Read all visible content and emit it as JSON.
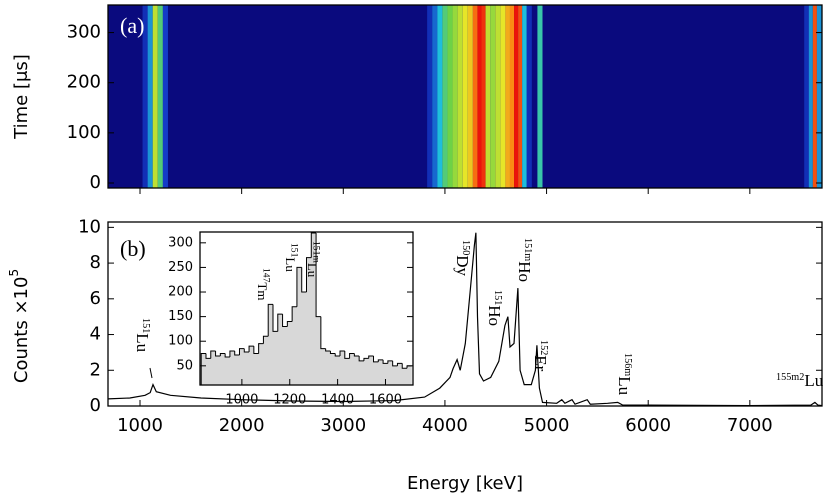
{
  "chart_data": [
    {
      "type": "heatmap",
      "label": "(a)",
      "ylabel": "Time [μs]",
      "xlim": [
        685,
        7710
      ],
      "xticks": [
        1000,
        2000,
        3000,
        4000,
        5000,
        6000,
        7000
      ],
      "ylim": [
        -10,
        355
      ],
      "yticks": [
        0,
        100,
        200,
        300
      ],
      "x": [
        1050,
        1100,
        1150,
        1200,
        1250,
        3850,
        3900,
        3950,
        4000,
        4050,
        4100,
        4150,
        4200,
        4250,
        4300,
        4340,
        4380,
        4420,
        4470,
        4520,
        4570,
        4620,
        4660,
        4700,
        4740,
        4780,
        4830,
        4935,
        7560,
        7600,
        7640,
        7680
      ],
      "values": [
        0.15,
        0.3,
        0.6,
        0.45,
        0.2,
        0.15,
        0.25,
        0.35,
        0.45,
        0.5,
        0.55,
        0.6,
        0.65,
        0.7,
        0.85,
        1.0,
        0.95,
        0.6,
        0.55,
        0.6,
        0.65,
        0.75,
        0.8,
        1.0,
        0.9,
        0.35,
        0.15,
        0.4,
        0.15,
        0.3,
        0.9,
        0.3
      ]
    },
    {
      "type": "line",
      "label": "(b)",
      "xlabel": "Energy [keV]",
      "ylabel": "Counts ×10",
      "ylabel_superscript": "5",
      "color": "#000000",
      "xlim": [
        685,
        7710
      ],
      "xticks": [
        1000,
        2000,
        3000,
        4000,
        5000,
        6000,
        7000
      ],
      "ylim": [
        0,
        10.3
      ],
      "yticks": [
        0,
        2,
        4,
        6,
        8,
        10
      ],
      "x": [
        685,
        900,
        1050,
        1100,
        1128,
        1160,
        1300,
        1600,
        2000,
        2500,
        3000,
        3500,
        3800,
        3950,
        4050,
        4080,
        4120,
        4150,
        4200,
        4250,
        4290,
        4305,
        4320,
        4340,
        4380,
        4450,
        4530,
        4590,
        4620,
        4640,
        4680,
        4718,
        4740,
        4780,
        4850,
        4890,
        4905,
        4930,
        4960,
        5100,
        5150,
        5180,
        5250,
        5280,
        5400,
        5430,
        5600,
        5700,
        5750,
        6000,
        7000,
        7600,
        7640,
        7670,
        7710
      ],
      "values": [
        0.4,
        0.45,
        0.6,
        0.75,
        1.2,
        0.8,
        0.6,
        0.45,
        0.35,
        0.28,
        0.25,
        0.3,
        0.5,
        1.0,
        1.6,
        2.1,
        2.6,
        2.0,
        3.5,
        6.5,
        9.0,
        9.7,
        5.0,
        1.8,
        1.4,
        1.6,
        2.5,
        4.5,
        5.0,
        3.3,
        3.5,
        6.6,
        2.0,
        1.2,
        1.2,
        2.0,
        3.4,
        1.0,
        0.2,
        0.15,
        0.35,
        0.15,
        0.35,
        0.1,
        0.35,
        0.1,
        0.15,
        0.2,
        0.05,
        0.05,
        0.02,
        0.05,
        0.2,
        0.05,
        0.02
      ],
      "annotations": [
        {
          "mass": "151",
          "symbol": "Lu"
        },
        {
          "mass": "150",
          "symbol": "Dy"
        },
        {
          "mass": "151",
          "symbol": "Ho"
        },
        {
          "mass": "151m",
          "symbol": "Ho"
        },
        {
          "mass": "152",
          "symbol": "Er"
        },
        {
          "mass": "156m",
          "symbol": "Lu"
        },
        {
          "mass": "155m2",
          "symbol": "Lu"
        }
      ]
    },
    {
      "type": "histogram",
      "color": "#000000",
      "fill": "#d8d8d8",
      "xlim": [
        825,
        1715
      ],
      "xticks": [
        1000,
        1200,
        1400,
        1600
      ],
      "ylim": [
        11,
        322
      ],
      "yticks": [
        50,
        100,
        150,
        200,
        250,
        300
      ],
      "bins": [
        830,
        850,
        870,
        890,
        910,
        930,
        950,
        970,
        990,
        1010,
        1030,
        1050,
        1070,
        1090,
        1110,
        1130,
        1150,
        1170,
        1190,
        1210,
        1230,
        1250,
        1270,
        1290,
        1310,
        1330,
        1350,
        1370,
        1390,
        1410,
        1430,
        1450,
        1470,
        1490,
        1510,
        1530,
        1550,
        1570,
        1590,
        1610,
        1630,
        1650,
        1670,
        1690,
        1710
      ],
      "values": [
        75,
        65,
        80,
        70,
        75,
        68,
        80,
        72,
        85,
        78,
        90,
        75,
        95,
        110,
        175,
        120,
        155,
        130,
        140,
        170,
        250,
        200,
        270,
        320,
        150,
        85,
        80,
        75,
        70,
        80,
        65,
        75,
        70,
        60,
        65,
        70,
        58,
        62,
        55,
        60,
        50,
        55,
        45,
        50
      ],
      "annotations": [
        {
          "mass": "147",
          "symbol": "Tm"
        },
        {
          "mass": "151",
          "symbol": "Lu"
        },
        {
          "mass": "151m",
          "symbol": "Lu"
        }
      ]
    }
  ]
}
